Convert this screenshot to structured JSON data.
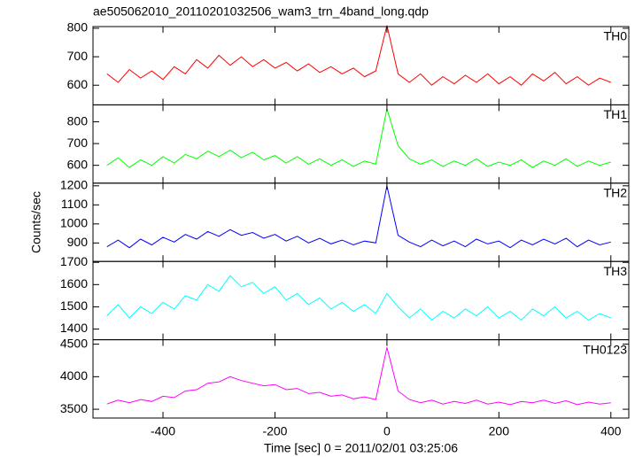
{
  "chart_data": [
    {
      "type": "line",
      "title": "ae505062010_20110201032506_wam3_trn_4band_long.qdp",
      "xlim": [
        -525,
        432
      ],
      "xticks": [
        -400,
        -200,
        0,
        200,
        400
      ],
      "ylim": [
        531,
        806
      ],
      "yticks": [
        600,
        700,
        800
      ],
      "x": [
        -500,
        -480,
        -460,
        -440,
        -420,
        -400,
        -380,
        -360,
        -340,
        -320,
        -300,
        -280,
        -260,
        -240,
        -220,
        -200,
        -180,
        -160,
        -140,
        -120,
        -100,
        -80,
        -60,
        -40,
        -20,
        0,
        20,
        40,
        60,
        80,
        100,
        120,
        140,
        160,
        180,
        200,
        220,
        240,
        260,
        280,
        300,
        320,
        340,
        360,
        380,
        400
      ],
      "series": [
        {
          "name": "TH0",
          "color": "#ff0000",
          "values": [
            640,
            610,
            655,
            625,
            650,
            620,
            665,
            640,
            690,
            660,
            705,
            670,
            700,
            665,
            690,
            660,
            680,
            650,
            675,
            645,
            665,
            640,
            660,
            630,
            650,
            810,
            640,
            610,
            640,
            600,
            630,
            605,
            635,
            610,
            640,
            605,
            630,
            600,
            640,
            615,
            645,
            605,
            630,
            600,
            625,
            610
          ]
        }
      ]
    },
    {
      "type": "line",
      "xlim": [
        -525,
        432
      ],
      "xticks": [
        -400,
        -200,
        0,
        200,
        400
      ],
      "ylim": [
        518,
        878
      ],
      "yticks": [
        600,
        700,
        800
      ],
      "x": [
        -500,
        -480,
        -460,
        -440,
        -420,
        -400,
        -380,
        -360,
        -340,
        -320,
        -300,
        -280,
        -260,
        -240,
        -220,
        -200,
        -180,
        -160,
        -140,
        -120,
        -100,
        -80,
        -60,
        -40,
        -20,
        0,
        20,
        40,
        60,
        80,
        100,
        120,
        140,
        160,
        180,
        200,
        220,
        240,
        260,
        280,
        300,
        320,
        340,
        360,
        380,
        400
      ],
      "series": [
        {
          "name": "TH1",
          "color": "#00ff00",
          "values": [
            600,
            635,
            590,
            625,
            600,
            640,
            610,
            650,
            630,
            665,
            640,
            670,
            635,
            660,
            625,
            645,
            610,
            640,
            605,
            630,
            600,
            625,
            595,
            620,
            605,
            860,
            690,
            630,
            605,
            625,
            595,
            620,
            600,
            630,
            595,
            615,
            600,
            625,
            590,
            620,
            600,
            630,
            595,
            620,
            600,
            615
          ]
        }
      ]
    },
    {
      "type": "line",
      "ylabel": "Counts/sec",
      "xlim": [
        -525,
        432
      ],
      "xticks": [
        -400,
        -200,
        0,
        200,
        400
      ],
      "ylim": [
        803,
        1214
      ],
      "yticks": [
        900,
        1000,
        1100,
        1200
      ],
      "x": [
        -500,
        -480,
        -460,
        -440,
        -420,
        -400,
        -380,
        -360,
        -340,
        -320,
        -300,
        -280,
        -260,
        -240,
        -220,
        -200,
        -180,
        -160,
        -140,
        -120,
        -100,
        -80,
        -60,
        -40,
        -20,
        0,
        20,
        40,
        60,
        80,
        100,
        120,
        140,
        160,
        180,
        200,
        220,
        240,
        260,
        280,
        300,
        320,
        340,
        360,
        380,
        400
      ],
      "series": [
        {
          "name": "TH2",
          "color": "#0000ff",
          "values": [
            880,
            915,
            875,
            920,
            890,
            930,
            905,
            945,
            920,
            960,
            935,
            970,
            940,
            955,
            925,
            945,
            910,
            935,
            900,
            925,
            895,
            915,
            890,
            910,
            900,
            1200,
            940,
            905,
            880,
            915,
            885,
            910,
            880,
            920,
            895,
            910,
            875,
            915,
            890,
            920,
            895,
            925,
            880,
            915,
            890,
            905
          ]
        }
      ]
    },
    {
      "type": "line",
      "xlim": [
        -525,
        432
      ],
      "xticks": [
        -400,
        -200,
        0,
        200,
        400
      ],
      "ylim": [
        1352,
        1704
      ],
      "yticks": [
        1400,
        1500,
        1600,
        1700
      ],
      "x": [
        -500,
        -480,
        -460,
        -440,
        -420,
        -400,
        -380,
        -360,
        -340,
        -320,
        -300,
        -280,
        -260,
        -240,
        -220,
        -200,
        -180,
        -160,
        -140,
        -120,
        -100,
        -80,
        -60,
        -40,
        -20,
        0,
        20,
        40,
        60,
        80,
        100,
        120,
        140,
        160,
        180,
        200,
        220,
        240,
        260,
        280,
        300,
        320,
        340,
        360,
        380,
        400
      ],
      "series": [
        {
          "name": "TH3",
          "color": "#00ffff",
          "values": [
            1460,
            1510,
            1450,
            1500,
            1470,
            1520,
            1490,
            1550,
            1530,
            1600,
            1570,
            1640,
            1590,
            1610,
            1560,
            1590,
            1530,
            1560,
            1510,
            1540,
            1490,
            1520,
            1480,
            1510,
            1470,
            1560,
            1500,
            1450,
            1490,
            1440,
            1480,
            1450,
            1490,
            1460,
            1500,
            1450,
            1480,
            1440,
            1490,
            1460,
            1500,
            1450,
            1480,
            1440,
            1470,
            1450
          ]
        }
      ]
    },
    {
      "type": "line",
      "xlabel": "Time [sec] 0 = 2011/02/01 03:25:06",
      "xlim": [
        -525,
        432
      ],
      "xticks": [
        -400,
        -200,
        0,
        200,
        400
      ],
      "ylim": [
        3365,
        4568
      ],
      "yticks": [
        3500,
        4000,
        4500
      ],
      "x": [
        -500,
        -480,
        -460,
        -440,
        -420,
        -400,
        -380,
        -360,
        -340,
        -320,
        -300,
        -280,
        -260,
        -240,
        -220,
        -200,
        -180,
        -160,
        -140,
        -120,
        -100,
        -80,
        -60,
        -40,
        -20,
        0,
        20,
        40,
        60,
        80,
        100,
        120,
        140,
        160,
        180,
        200,
        220,
        240,
        260,
        280,
        300,
        320,
        340,
        360,
        380,
        400
      ],
      "series": [
        {
          "name": "TH0123",
          "color": "#ff00ff",
          "values": [
            3580,
            3640,
            3600,
            3650,
            3620,
            3700,
            3680,
            3780,
            3800,
            3900,
            3920,
            4000,
            3940,
            3900,
            3860,
            3880,
            3800,
            3820,
            3740,
            3760,
            3700,
            3720,
            3660,
            3690,
            3650,
            4450,
            3780,
            3650,
            3600,
            3640,
            3580,
            3620,
            3590,
            3640,
            3580,
            3610,
            3570,
            3620,
            3600,
            3640,
            3590,
            3630,
            3570,
            3610,
            3580,
            3600
          ]
        }
      ]
    }
  ]
}
